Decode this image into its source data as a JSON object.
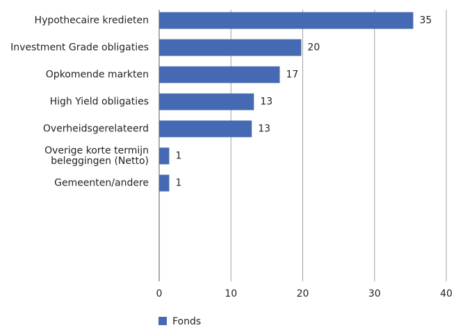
{
  "chart_data": {
    "type": "bar",
    "orientation": "horizontal",
    "categories": [
      "Hypothecaire kredieten",
      "Investment Grade obligaties",
      "Opkomende markten",
      "High Yield obligaties",
      "Overheidsgerelateerd",
      "Overige korte termijn\nbeleggingen (Netto)",
      "Gemeenten/andere"
    ],
    "series": [
      {
        "name": "Fonds",
        "color": "#4569b3",
        "values": [
          35.4,
          19.8,
          16.8,
          13.2,
          12.9,
          1.4,
          1.4
        ],
        "value_labels": [
          "35",
          "20",
          "17",
          "13",
          "13",
          "1",
          "1"
        ]
      }
    ],
    "xlim": [
      0,
      40
    ],
    "xticks": [
      0,
      10,
      20,
      30,
      40
    ],
    "grid": true,
    "legend": "bottom"
  }
}
